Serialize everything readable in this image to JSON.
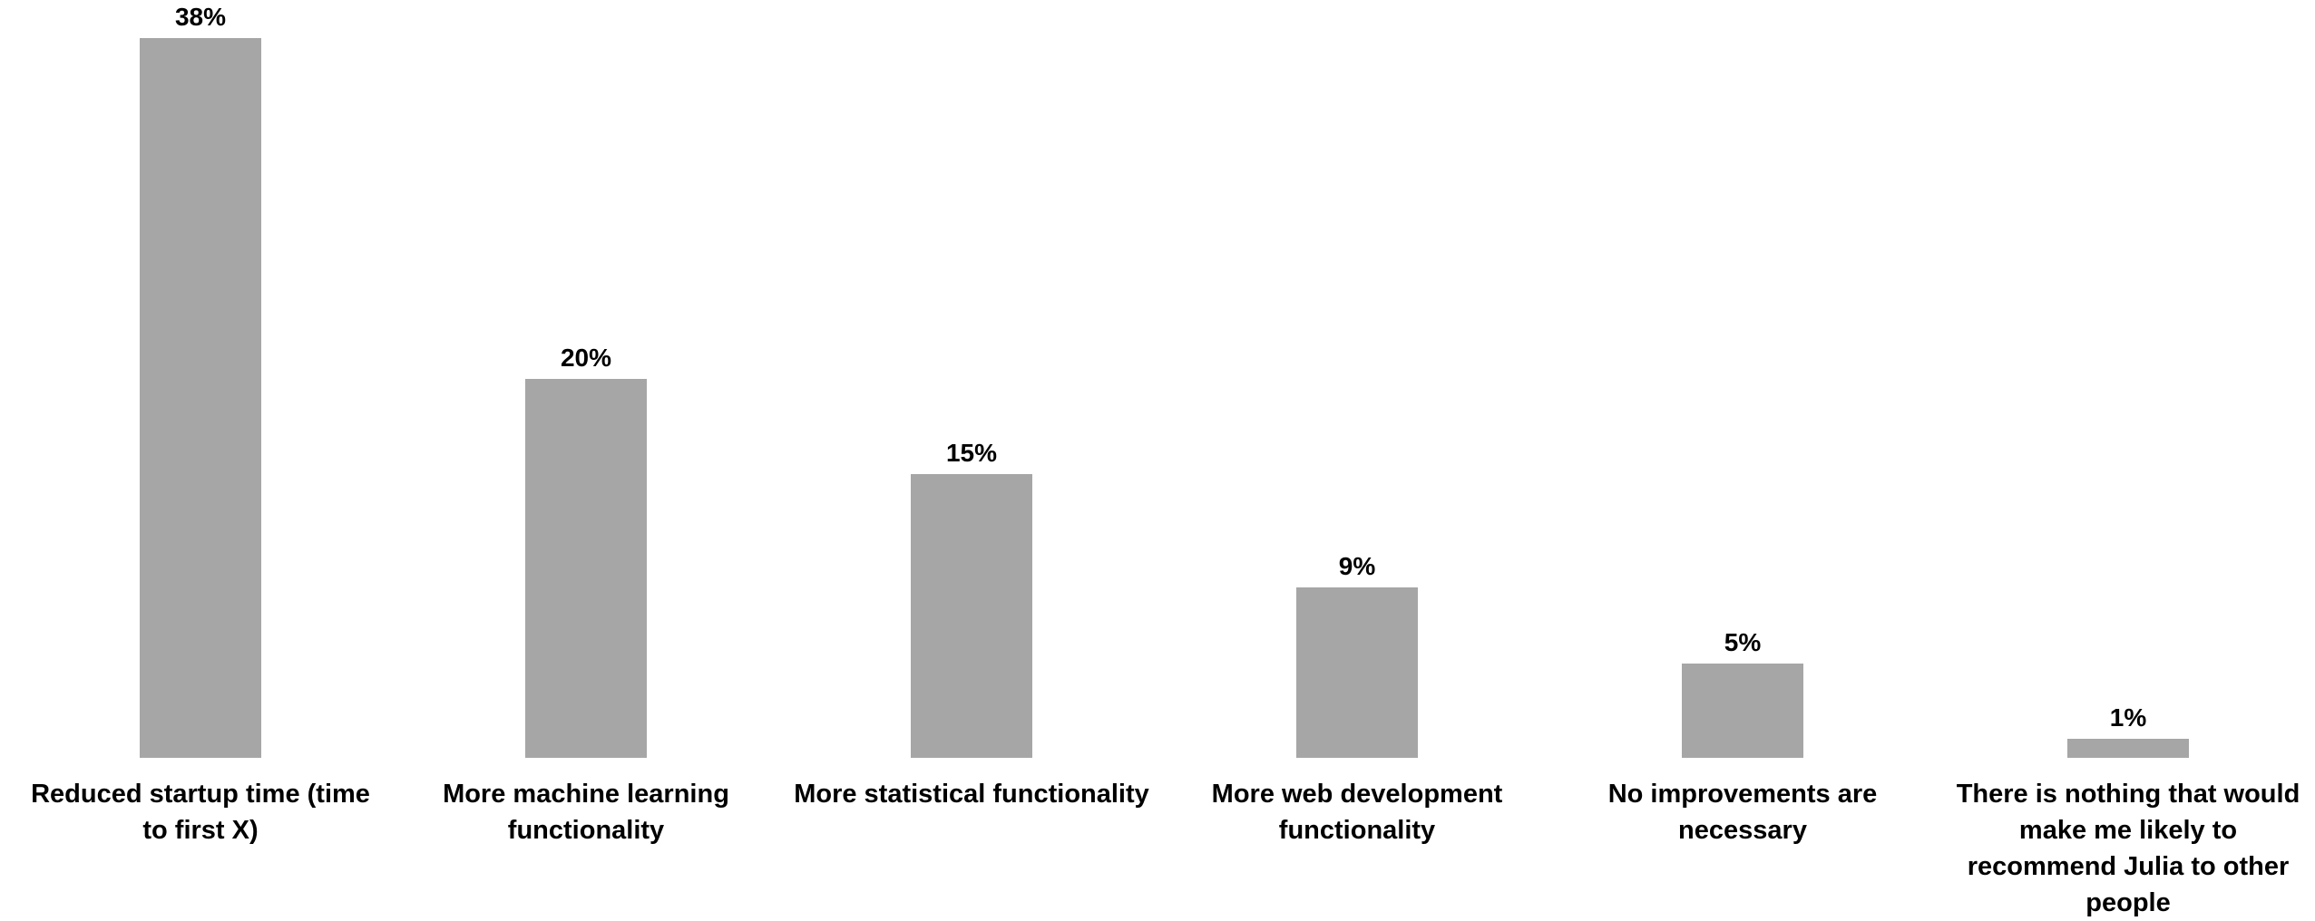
{
  "chart_data": {
    "type": "bar",
    "title": "",
    "xlabel": "",
    "ylabel": "",
    "ylim": [
      0,
      38
    ],
    "grid": false,
    "legend": "none",
    "bar_color": "#a6a6a6",
    "categories": [
      "Reduced startup time (time to first X)",
      "More machine learning functionality",
      "More statistical functionality",
      "More web development functionality",
      "No improvements are necessary",
      "There is nothing that would make me likely to recommend Julia to other people"
    ],
    "values": [
      38,
      20,
      15,
      9,
      5,
      1
    ],
    "data_labels": [
      "38%",
      "20%",
      "15%",
      "9%",
      "5%",
      "1%"
    ]
  }
}
